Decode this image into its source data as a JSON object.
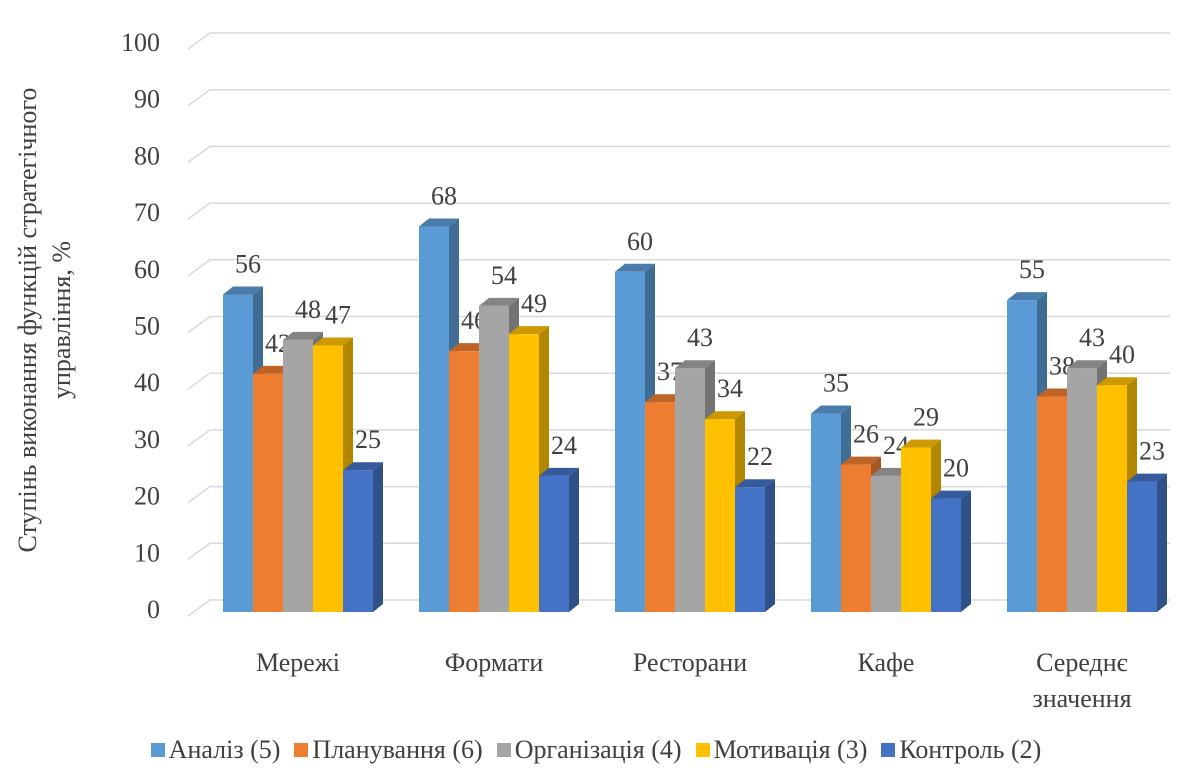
{
  "chart_data": {
    "type": "bar3d",
    "y_label": "Ступінь виконання функцій стратегічного управління, %",
    "categories": [
      "Мережі",
      "Формати",
      "Ресторани",
      "Кафе",
      "Середнє значення"
    ],
    "series": [
      {
        "name": "Аналіз (5)",
        "color": "#5b9bd5",
        "values": [
          56,
          68,
          60,
          35,
          55
        ]
      },
      {
        "name": "Планування (6)",
        "color": "#ed7d31",
        "values": [
          42,
          46,
          37,
          26,
          38
        ]
      },
      {
        "name": "Організація (4)",
        "color": "#a5a5a5",
        "values": [
          48,
          54,
          43,
          24,
          43
        ]
      },
      {
        "name": "Мотивація (3)",
        "color": "#ffc000",
        "values": [
          47,
          49,
          34,
          29,
          40
        ]
      },
      {
        "name": "Контроль (2)",
        "color": "#4472c4",
        "values": [
          25,
          24,
          22,
          20,
          23
        ]
      }
    ],
    "ylim": [
      0,
      100
    ],
    "yticks": [
      0,
      10,
      20,
      30,
      40,
      50,
      60,
      70,
      80,
      90,
      100
    ],
    "grid": true,
    "legend": "bottom"
  }
}
